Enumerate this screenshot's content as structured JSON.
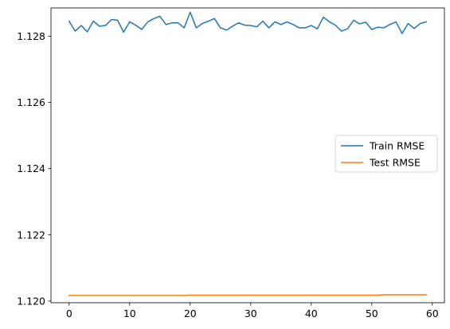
{
  "chart_data": {
    "type": "line",
    "title": "",
    "xlabel": "",
    "ylabel": "",
    "xlim": [
      -3,
      62
    ],
    "ylim": [
      1.11995,
      1.12885
    ],
    "grid": false,
    "legend_position": "center-right",
    "x_ticks": [
      0,
      10,
      20,
      30,
      40,
      50,
      60
    ],
    "x_tick_labels": [
      "0",
      "10",
      "20",
      "30",
      "40",
      "50",
      "60"
    ],
    "y_ticks": [
      1.12,
      1.122,
      1.124,
      1.126,
      1.128
    ],
    "y_tick_labels": [
      "1.120",
      "1.122",
      "1.124",
      "1.126",
      "1.128"
    ],
    "series": [
      {
        "name": "Train RMSE",
        "color": "#1f77b4",
        "x": [
          0,
          1,
          2,
          3,
          4,
          5,
          6,
          7,
          8,
          9,
          10,
          11,
          12,
          13,
          14,
          15,
          16,
          17,
          18,
          19,
          20,
          21,
          22,
          23,
          24,
          25,
          26,
          27,
          28,
          29,
          30,
          31,
          32,
          33,
          34,
          35,
          36,
          37,
          38,
          39,
          40,
          41,
          42,
          43,
          44,
          45,
          46,
          47,
          48,
          49,
          50,
          51,
          52,
          53,
          54,
          55,
          56,
          57,
          58,
          59
        ],
        "values": [
          1.12845,
          1.12815,
          1.12832,
          1.12813,
          1.12845,
          1.1283,
          1.12832,
          1.1285,
          1.12848,
          1.12812,
          1.12843,
          1.12833,
          1.1282,
          1.12843,
          1.12853,
          1.1286,
          1.12835,
          1.1284,
          1.1284,
          1.12825,
          1.12872,
          1.12825,
          1.12838,
          1.12845,
          1.12853,
          1.12825,
          1.12818,
          1.1283,
          1.1284,
          1.12833,
          1.12832,
          1.12828,
          1.12845,
          1.12825,
          1.12843,
          1.12835,
          1.12843,
          1.12835,
          1.12825,
          1.12825,
          1.12832,
          1.12822,
          1.12857,
          1.12843,
          1.12833,
          1.12815,
          1.12822,
          1.12848,
          1.12837,
          1.12842,
          1.1282,
          1.12827,
          1.12825,
          1.12835,
          1.12843,
          1.12808,
          1.12838,
          1.12823,
          1.12838,
          1.12843
        ]
      },
      {
        "name": "Test RMSE",
        "color": "#ff7f0e",
        "x": [
          0,
          1,
          2,
          3,
          4,
          5,
          6,
          7,
          8,
          9,
          10,
          11,
          12,
          13,
          14,
          15,
          16,
          17,
          18,
          19,
          20,
          21,
          22,
          23,
          24,
          25,
          26,
          27,
          28,
          29,
          30,
          31,
          32,
          33,
          34,
          35,
          36,
          37,
          38,
          39,
          40,
          41,
          42,
          43,
          44,
          45,
          46,
          47,
          48,
          49,
          50,
          51,
          52,
          53,
          54,
          55,
          56,
          57,
          58,
          59
        ],
        "values": [
          1.12017,
          1.12017,
          1.12017,
          1.12017,
          1.12017,
          1.12017,
          1.12017,
          1.12017,
          1.12017,
          1.12017,
          1.12017,
          1.12017,
          1.12017,
          1.12017,
          1.12017,
          1.12017,
          1.12017,
          1.12017,
          1.12017,
          1.12017,
          1.12018,
          1.12018,
          1.12018,
          1.12018,
          1.12018,
          1.12018,
          1.12018,
          1.12018,
          1.12018,
          1.12018,
          1.12018,
          1.12018,
          1.12018,
          1.12018,
          1.12018,
          1.12018,
          1.12018,
          1.12018,
          1.12018,
          1.12018,
          1.12018,
          1.12018,
          1.12018,
          1.12018,
          1.12018,
          1.12018,
          1.12018,
          1.12018,
          1.12018,
          1.12018,
          1.12018,
          1.12018,
          1.12019,
          1.12019,
          1.12019,
          1.12019,
          1.12019,
          1.12019,
          1.12019,
          1.12019
        ]
      }
    ]
  }
}
